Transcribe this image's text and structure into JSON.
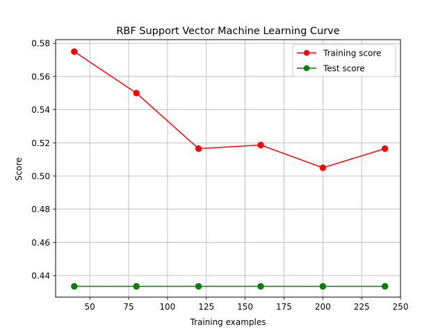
{
  "chart_data": {
    "type": "line",
    "title": "RBF Support Vector Machine Learning Curve",
    "xlabel": "Training examples",
    "ylabel": "Score",
    "x": [
      40,
      80,
      120,
      160,
      200,
      240
    ],
    "xlim": [
      28,
      250
    ],
    "ylim": [
      0.427,
      0.5822
    ],
    "xticks": [
      50,
      75,
      100,
      125,
      150,
      175,
      200,
      225,
      250
    ],
    "yticks": [
      0.44,
      0.46,
      0.48,
      0.5,
      0.52,
      0.54,
      0.56,
      0.58
    ],
    "grid": true,
    "legend_position": "top-right",
    "series": [
      {
        "name": "Training score",
        "color": "#ff0000",
        "values": [
          0.575,
          0.55,
          0.5165,
          0.5187,
          0.505,
          0.5165
        ]
      },
      {
        "name": "Test score",
        "color": "#008000",
        "values": [
          0.4335,
          0.4335,
          0.4335,
          0.4335,
          0.4335,
          0.4335
        ]
      }
    ]
  }
}
